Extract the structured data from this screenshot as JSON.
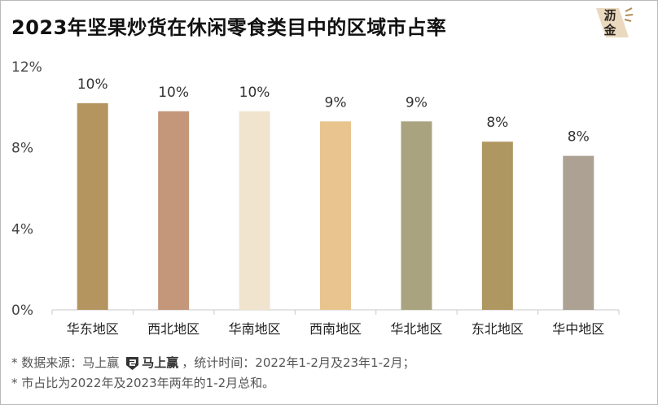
{
  "title": "2023年坚果炒货在休闲零食类目中的区域市占率",
  "logo": {
    "icon": "lijin-logo-icon",
    "text_top": "沥",
    "text_bottom": "金"
  },
  "chart_data": {
    "type": "bar",
    "title": "2023年坚果炒货在休闲零食类目中的区域市占率",
    "categories": [
      "华东地区",
      "西北地区",
      "华南地区",
      "西南地区",
      "华北地区",
      "东北地区",
      "华中地区"
    ],
    "values": [
      10.2,
      9.8,
      9.8,
      9.3,
      9.3,
      8.3,
      7.6
    ],
    "data_labels": [
      "10%",
      "10%",
      "10%",
      "9%",
      "9%",
      "8%",
      "8%"
    ],
    "colors": [
      "#b5955f",
      "#c4977a",
      "#f1e4cf",
      "#e8c58e",
      "#a9a47f",
      "#ae9760",
      "#aca192"
    ],
    "ylim": [
      0,
      12
    ],
    "yticks": [
      0,
      4,
      8,
      12
    ],
    "ytick_labels": [
      "0%",
      "4%",
      "8%",
      "12%"
    ],
    "xlabel": "",
    "ylabel": "",
    "grid": false,
    "legend": "none"
  },
  "footnotes": {
    "line1_prefix": "* 数据来源：马上赢",
    "brand_icon": "mashangying-logo-icon",
    "brand_name": "马上赢",
    "line1_suffix": "，统计时间：2022年1-2月及23年1-2月；",
    "line2": "* 市占比为2022年及2023年两年的1-2月总和。"
  }
}
